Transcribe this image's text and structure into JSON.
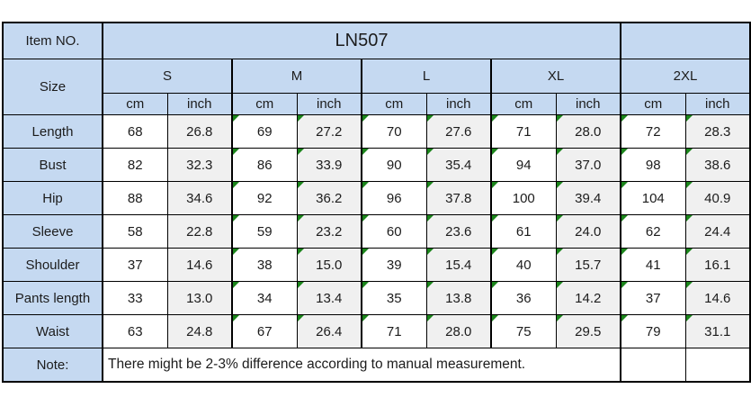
{
  "item_no": {
    "label": "Item NO.",
    "value": "LN507"
  },
  "size_header": {
    "label": "Size",
    "sizes": [
      "S",
      "M",
      "L",
      "XL",
      "2XL"
    ],
    "units": [
      "cm",
      "inch"
    ]
  },
  "measurements": [
    {
      "label": "Length",
      "values": [
        [
          "68",
          "26.8"
        ],
        [
          "69",
          "27.2"
        ],
        [
          "70",
          "27.6"
        ],
        [
          "71",
          "28.0"
        ],
        [
          "72",
          "28.3"
        ]
      ]
    },
    {
      "label": "Bust",
      "values": [
        [
          "82",
          "32.3"
        ],
        [
          "86",
          "33.9"
        ],
        [
          "90",
          "35.4"
        ],
        [
          "94",
          "37.0"
        ],
        [
          "98",
          "38.6"
        ]
      ]
    },
    {
      "label": "Hip",
      "values": [
        [
          "88",
          "34.6"
        ],
        [
          "92",
          "36.2"
        ],
        [
          "96",
          "37.8"
        ],
        [
          "100",
          "39.4"
        ],
        [
          "104",
          "40.9"
        ]
      ]
    },
    {
      "label": "Sleeve",
      "values": [
        [
          "58",
          "22.8"
        ],
        [
          "59",
          "23.2"
        ],
        [
          "60",
          "23.6"
        ],
        [
          "61",
          "24.0"
        ],
        [
          "62",
          "24.4"
        ]
      ]
    },
    {
      "label": "Shoulder",
      "values": [
        [
          "37",
          "14.6"
        ],
        [
          "38",
          "15.0"
        ],
        [
          "39",
          "15.4"
        ],
        [
          "40",
          "15.7"
        ],
        [
          "41",
          "16.1"
        ]
      ]
    },
    {
      "label": "Pants length",
      "values": [
        [
          "33",
          "13.0"
        ],
        [
          "34",
          "13.4"
        ],
        [
          "35",
          "13.8"
        ],
        [
          "36",
          "14.2"
        ],
        [
          "37",
          "14.6"
        ]
      ]
    },
    {
      "label": "Waist",
      "values": [
        [
          "63",
          "24.8"
        ],
        [
          "67",
          "26.4"
        ],
        [
          "71",
          "28.0"
        ],
        [
          "75",
          "29.5"
        ],
        [
          "79",
          "31.1"
        ]
      ]
    }
  ],
  "note": {
    "label": "Note:",
    "text": "There might be 2-3% difference according to manual measurement."
  },
  "cell_corner_flags": {
    "meaning": "green number-stored-as-text corner triangles",
    "flagged_size_columns": [
      "M",
      "L",
      "XL",
      "2XL"
    ]
  },
  "colors": {
    "header_blue": "#C5D9F1",
    "inch_column_gray": "#F0F0F0",
    "border_black": "#000000",
    "flag_green": "#1B851B",
    "text": "#1C1C1C"
  },
  "chart_data": {
    "type": "table",
    "title": "LN507",
    "columns": [
      "Size",
      "S cm",
      "S inch",
      "M cm",
      "M inch",
      "L cm",
      "L inch",
      "XL cm",
      "XL inch",
      "2XL cm",
      "2XL inch"
    ],
    "rows": [
      [
        "Length",
        68,
        26.8,
        69,
        27.2,
        70,
        27.6,
        71,
        28.0,
        72,
        28.3
      ],
      [
        "Bust",
        82,
        32.3,
        86,
        33.9,
        90,
        35.4,
        94,
        37.0,
        98,
        38.6
      ],
      [
        "Hip",
        88,
        34.6,
        92,
        36.2,
        96,
        37.8,
        100,
        39.4,
        104,
        40.9
      ],
      [
        "Sleeve",
        58,
        22.8,
        59,
        23.2,
        60,
        23.6,
        61,
        24.0,
        62,
        24.4
      ],
      [
        "Shoulder",
        37,
        14.6,
        38,
        15.0,
        39,
        15.4,
        40,
        15.7,
        41,
        16.1
      ],
      [
        "Pants length",
        33,
        13.0,
        34,
        13.4,
        35,
        13.8,
        36,
        14.2,
        37,
        14.6
      ],
      [
        "Waist",
        63,
        24.8,
        67,
        26.4,
        71,
        28.0,
        75,
        29.5,
        79,
        31.1
      ]
    ],
    "note": "There might be 2-3% difference according to manual measurement."
  }
}
